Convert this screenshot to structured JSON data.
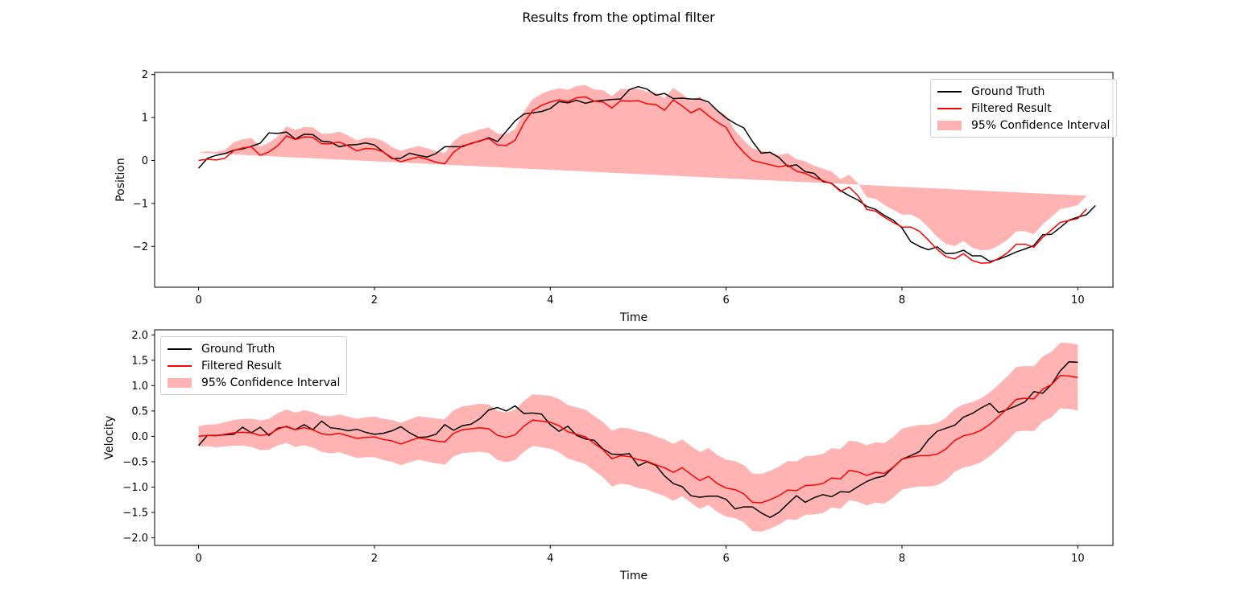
{
  "suptitle": "Results from the optimal filter",
  "colors": {
    "ground_truth": "#000000",
    "filtered": "#ff0000",
    "ci_fill": "#ff9999"
  },
  "chart_data": [
    {
      "type": "line",
      "xlabel": "Time",
      "ylabel": "Position",
      "xlim": [
        -0.5,
        10.4
      ],
      "ylim": [
        -2.95,
        2.05
      ],
      "xticks": [
        0,
        2,
        4,
        6,
        8,
        10
      ],
      "yticks": [
        -2,
        -1,
        0,
        1,
        2
      ],
      "xtick_labels": [
        "0",
        "2",
        "4",
        "6",
        "8",
        "10"
      ],
      "ytick_labels": [
        "−2",
        "−1",
        "0",
        "1",
        "2"
      ],
      "legend_position": "upper right",
      "legend": [
        "Ground Truth",
        "Filtered Result",
        "95% Confidence Interval"
      ],
      "x_step": 0.1,
      "series": [
        {
          "name": "Ground Truth",
          "values": [
            -0.18,
            0.05,
            0.12,
            0.16,
            0.24,
            0.27,
            0.33,
            0.4,
            0.64,
            0.63,
            0.66,
            0.5,
            0.61,
            0.6,
            0.45,
            0.43,
            0.32,
            0.36,
            0.37,
            0.41,
            0.36,
            0.2,
            0.04,
            0.05,
            0.17,
            0.12,
            0.08,
            0.16,
            0.32,
            0.32,
            0.32,
            0.4,
            0.45,
            0.53,
            0.44,
            0.68,
            0.92,
            1.08,
            1.11,
            1.14,
            1.21,
            1.37,
            1.34,
            1.4,
            1.33,
            1.38,
            1.4,
            1.42,
            1.43,
            1.65,
            1.72,
            1.66,
            1.52,
            1.56,
            1.44,
            1.45,
            1.43,
            1.43,
            1.36,
            1.16,
            0.99,
            0.86,
            0.76,
            0.44,
            0.17,
            0.19,
            0.07,
            -0.14,
            -0.1,
            -0.26,
            -0.3,
            -0.49,
            -0.53,
            -0.7,
            -0.82,
            -0.92,
            -1.07,
            -1.14,
            -1.28,
            -1.39,
            -1.57,
            -1.89,
            -2.0,
            -2.08,
            -2.01,
            -2.17,
            -2.16,
            -2.09,
            -2.22,
            -2.22,
            -2.35,
            -2.3,
            -2.22,
            -2.13,
            -2.06,
            -1.98,
            -1.73,
            -1.72,
            -1.56,
            -1.39,
            -1.32,
            -1.26,
            -1.05
          ]
        },
        {
          "name": "Filtered Result",
          "values": [
            0.0,
            0.03,
            0.01,
            0.05,
            0.23,
            0.29,
            0.32,
            0.12,
            0.2,
            0.34,
            0.57,
            0.49,
            0.55,
            0.54,
            0.39,
            0.39,
            0.43,
            0.34,
            0.22,
            0.28,
            0.27,
            0.2,
            0.06,
            -0.03,
            0.03,
            0.08,
            0.03,
            -0.04,
            -0.08,
            0.19,
            0.34,
            0.39,
            0.46,
            0.51,
            0.36,
            0.35,
            0.47,
            0.87,
            1.16,
            1.28,
            1.36,
            1.41,
            1.37,
            1.46,
            1.48,
            1.38,
            1.36,
            1.22,
            1.39,
            1.38,
            1.39,
            1.32,
            1.3,
            1.17,
            1.41,
            1.27,
            1.11,
            1.21,
            1.04,
            0.89,
            0.77,
            0.42,
            0.19,
            0.0,
            -0.05,
            -0.1,
            -0.15,
            -0.11,
            -0.25,
            -0.3,
            -0.4,
            -0.47,
            -0.54,
            -0.72,
            -0.62,
            -0.82,
            -1.14,
            -1.18,
            -1.32,
            -1.44,
            -1.55,
            -1.55,
            -1.65,
            -1.85,
            -2.07,
            -2.24,
            -2.29,
            -2.17,
            -2.33,
            -2.39,
            -2.38,
            -2.28,
            -2.15,
            -1.95,
            -1.95,
            -2.02,
            -1.79,
            -1.62,
            -1.44,
            -1.4,
            -1.35,
            -1.13
          ]
        }
      ],
      "ci_halfwidth": [
        0.18,
        0.22,
        0.25,
        0.26,
        0.27,
        0.28,
        0.28,
        0.28,
        0.29,
        0.3,
        0.31
      ]
    },
    {
      "type": "line",
      "xlabel": "Time",
      "ylabel": "Velocity",
      "xlim": [
        -0.5,
        10.4
      ],
      "ylim": [
        -2.15,
        2.1
      ],
      "xticks": [
        0,
        2,
        4,
        6,
        8,
        10
      ],
      "yticks": [
        -2.0,
        -1.5,
        -1.0,
        -0.5,
        0.0,
        0.5,
        1.0,
        1.5,
        2.0
      ],
      "xtick_labels": [
        "0",
        "2",
        "4",
        "6",
        "8",
        "10"
      ],
      "ytick_labels": [
        "−2.0",
        "−1.5",
        "−1.0",
        "−0.5",
        "0.0",
        "0.5",
        "1.0",
        "1.5",
        "2.0"
      ],
      "legend_position": "upper left",
      "legend": [
        "Ground Truth",
        "Filtered Result",
        "95% Confidence Interval"
      ],
      "x_step": 0.1,
      "series": [
        {
          "name": "Ground Truth",
          "values": [
            -0.18,
            0.02,
            0.02,
            0.03,
            0.04,
            0.18,
            0.07,
            0.18,
            0.02,
            0.16,
            0.19,
            0.13,
            0.23,
            0.13,
            0.3,
            0.17,
            0.15,
            0.11,
            0.14,
            0.08,
            0.04,
            0.06,
            0.11,
            0.19,
            0.07,
            -0.02,
            -0.01,
            0.04,
            0.23,
            0.12,
            0.21,
            0.24,
            0.35,
            0.52,
            0.57,
            0.5,
            0.6,
            0.45,
            0.46,
            0.44,
            0.23,
            0.1,
            0.2,
            0.02,
            -0.05,
            -0.08,
            -0.25,
            -0.35,
            -0.36,
            -0.34,
            -0.58,
            -0.5,
            -0.57,
            -0.78,
            -0.93,
            -0.99,
            -1.17,
            -1.2,
            -1.18,
            -1.18,
            -1.24,
            -1.43,
            -1.39,
            -1.39,
            -1.51,
            -1.6,
            -1.5,
            -1.33,
            -1.17,
            -1.3,
            -1.21,
            -1.15,
            -1.19,
            -1.09,
            -1.1,
            -0.99,
            -0.89,
            -0.82,
            -0.78,
            -0.61,
            -0.45,
            -0.38,
            -0.3,
            -0.07,
            0.1,
            0.16,
            0.22,
            0.38,
            0.45,
            0.56,
            0.65,
            0.47,
            0.53,
            0.6,
            0.68,
            0.88,
            0.85,
            1.02,
            1.29,
            1.47,
            1.46
          ]
        },
        {
          "name": "Filtered Result",
          "values": [
            0.0,
            0.02,
            0.01,
            0.04,
            0.07,
            0.08,
            0.07,
            0.02,
            0.04,
            0.14,
            0.2,
            0.13,
            0.17,
            0.13,
            0.05,
            0.03,
            0.06,
            0.01,
            -0.04,
            -0.02,
            -0.01,
            -0.06,
            -0.09,
            -0.15,
            -0.09,
            -0.03,
            -0.06,
            -0.09,
            -0.11,
            0.06,
            0.13,
            0.15,
            0.17,
            0.15,
            0.02,
            -0.02,
            0.03,
            0.2,
            0.32,
            0.3,
            0.28,
            0.21,
            0.09,
            0.04,
            -0.01,
            -0.14,
            -0.26,
            -0.44,
            -0.38,
            -0.4,
            -0.46,
            -0.49,
            -0.56,
            -0.62,
            -0.71,
            -0.62,
            -0.75,
            -0.87,
            -0.79,
            -0.93,
            -1.02,
            -1.05,
            -1.13,
            -1.3,
            -1.31,
            -1.25,
            -1.17,
            -1.06,
            -1.07,
            -0.97,
            -0.96,
            -0.93,
            -0.82,
            -0.84,
            -0.67,
            -0.7,
            -0.77,
            -0.71,
            -0.73,
            -0.61,
            -0.45,
            -0.41,
            -0.38,
            -0.38,
            -0.35,
            -0.25,
            -0.08,
            0.01,
            0.05,
            0.12,
            0.24,
            0.39,
            0.55,
            0.73,
            0.75,
            0.74,
            0.93,
            1.02,
            1.2,
            1.19,
            1.16,
            1.24
          ]
        }
      ],
      "ci_halfwidth": [
        0.2,
        0.33,
        0.4,
        0.46,
        0.52,
        0.56,
        0.56,
        0.58,
        0.6,
        0.63,
        0.65
      ]
    }
  ]
}
